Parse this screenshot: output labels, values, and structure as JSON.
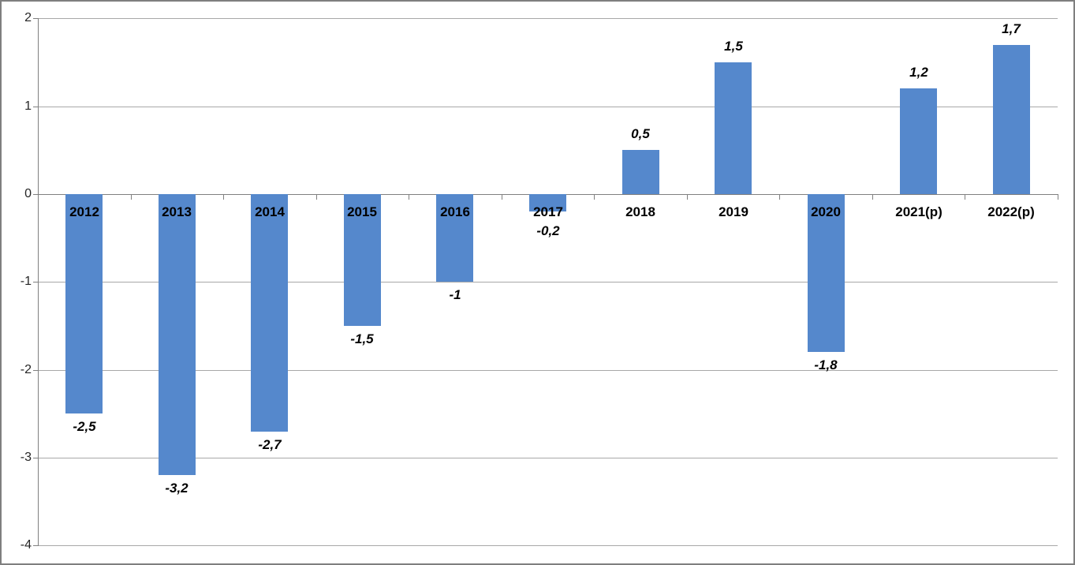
{
  "chart_data": {
    "type": "bar",
    "title": "",
    "xlabel": "",
    "ylabel": "",
    "categories": [
      "2012",
      "2013",
      "2014",
      "2015",
      "2016",
      "2017",
      "2018",
      "2019",
      "2020",
      "2021(p)",
      "2022(p)"
    ],
    "values": [
      -2.5,
      -3.2,
      -2.7,
      -1.5,
      -1,
      -0.2,
      0.5,
      1.5,
      -1.8,
      1.2,
      1.7
    ],
    "value_labels": [
      "-2,5",
      "-3,2",
      "-2,7",
      "-1,5",
      "-1",
      "-0,2",
      "0,5",
      "1,5",
      "-1,8",
      "1,2",
      "1,7"
    ],
    "ylim": [
      -4,
      2
    ],
    "y_ticks": [
      2,
      1,
      0,
      -1,
      -2,
      -3,
      -4
    ],
    "y_tick_labels": [
      "2",
      "1",
      "0",
      "-1",
      "-2",
      "-3",
      "-4"
    ],
    "grid": true,
    "legend": false,
    "decimal_separator": ",",
    "colors": {
      "bar_fill": "#5588CC",
      "gridline": "#A8A8A8",
      "axis_line": "#808080",
      "axis_tick_label": "#262626",
      "category_label": "#000000",
      "value_label": "#000000",
      "plot_background": "#FFFFFF",
      "outer_border": "#7F7F7F"
    }
  }
}
